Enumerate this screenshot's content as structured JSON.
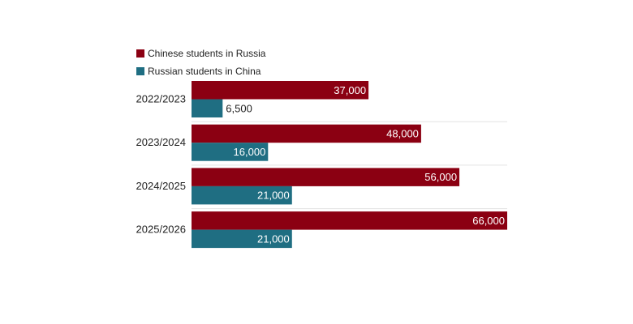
{
  "chart_data": {
    "type": "bar",
    "orientation": "horizontal",
    "categories": [
      "2022/2023",
      "2023/2024",
      "2024/2025",
      "2025/2026"
    ],
    "series": [
      {
        "name": "Chinese students in Russia",
        "color": "#8b0012",
        "values": [
          37000,
          48000,
          56000,
          66000
        ],
        "labels": [
          "37,000",
          "48,000",
          "56,000",
          "66,000"
        ]
      },
      {
        "name": "Russian students in China",
        "color": "#1f6e82",
        "values": [
          6500,
          16000,
          21000,
          21000
        ],
        "labels": [
          "6,500",
          "16,000",
          "21,000",
          "21,000"
        ]
      }
    ],
    "xlim": [
      0,
      66000
    ],
    "legend": "top-left",
    "grid": false
  }
}
